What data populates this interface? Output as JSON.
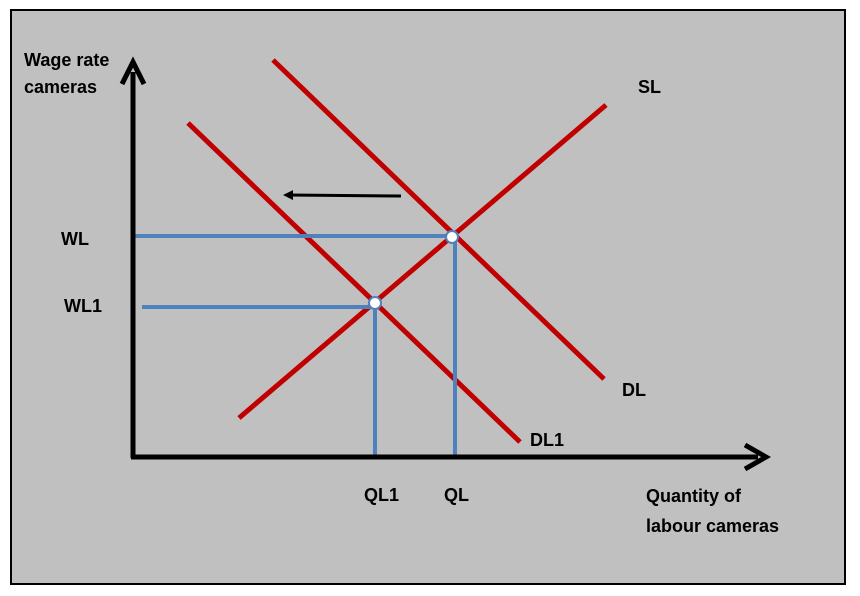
{
  "axes": {
    "y_label_lines": [
      "Wage rate",
      "cameras"
    ],
    "x_label_lines": [
      "Quantity of",
      "labour cameras"
    ]
  },
  "curves": {
    "supply": "SL",
    "demand": "DL",
    "demand_shifted": "DL1"
  },
  "levels": {
    "wage_high": "WL",
    "wage_low": "WL1",
    "quantity_high": "QL",
    "quantity_low": "QL1"
  },
  "colors": {
    "background": "#c0c0c0",
    "curve": "#c00000",
    "guide": "#4f81bd",
    "axis": "#000000",
    "marker_fill": "#ffffff"
  }
}
